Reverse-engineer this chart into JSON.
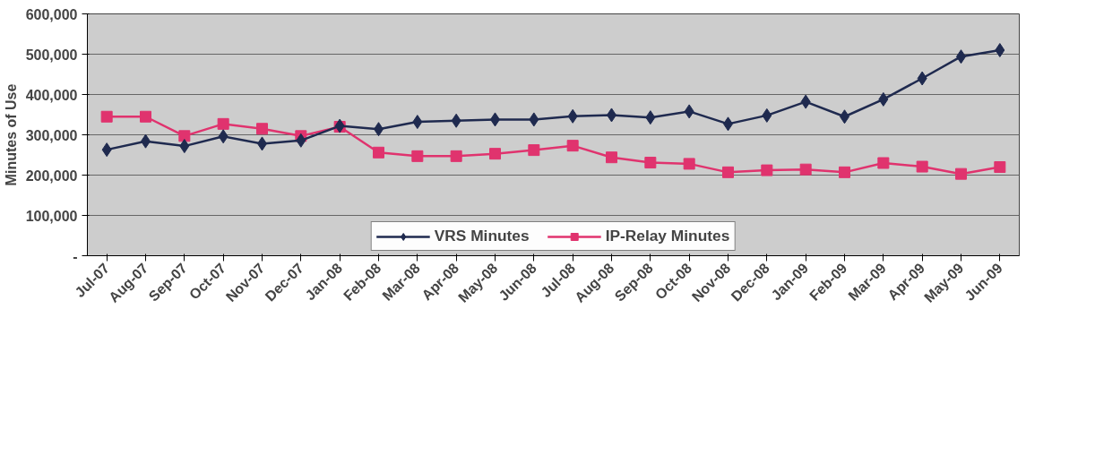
{
  "chart_data": {
    "type": "line",
    "ylabel": "Minutes of Use",
    "categories": [
      "Jul-07",
      "Aug-07",
      "Sep-07",
      "Oct-07",
      "Nov-07",
      "Dec-07",
      "Jan-08",
      "Feb-08",
      "Mar-08",
      "Apr-08",
      "May-08",
      "Jun-08",
      "Jul-08",
      "Aug-08",
      "Sep-08",
      "Oct-08",
      "Nov-08",
      "Dec-08",
      "Jan-09",
      "Feb-09",
      "Mar-09",
      "Apr-09",
      "May-09",
      "Jun-09"
    ],
    "series": [
      {
        "name": "VRS Minutes",
        "color": "#1f2a4f",
        "marker": "diamond",
        "values": [
          263000,
          284000,
          272000,
          296000,
          278000,
          286000,
          322000,
          314000,
          332000,
          335000,
          338000,
          338000,
          346000,
          349000,
          343000,
          358000,
          327000,
          348000,
          382000,
          345000,
          388000,
          440000,
          494000,
          510000
        ]
      },
      {
        "name": "IP-Relay Minutes",
        "color": "#e0336e",
        "marker": "square",
        "values": [
          345000,
          345000,
          297000,
          327000,
          315000,
          297000,
          320000,
          256000,
          247000,
          247000,
          253000,
          262000,
          273000,
          244000,
          231000,
          228000,
          207000,
          212000,
          214000,
          207000,
          230000,
          221000,
          203000,
          220000
        ]
      }
    ],
    "ylim": [
      0,
      600000
    ],
    "yticks": [
      {
        "value": 0,
        "label": "-"
      },
      {
        "value": 100000,
        "label": "100,000"
      },
      {
        "value": 200000,
        "label": "200,000"
      },
      {
        "value": 300000,
        "label": "300,000"
      },
      {
        "value": 400000,
        "label": "400,000"
      },
      {
        "value": 500000,
        "label": "500,000"
      },
      {
        "value": 600000,
        "label": "600,000"
      }
    ],
    "grid": "y",
    "legend": "bottom",
    "line_style": "solid"
  }
}
